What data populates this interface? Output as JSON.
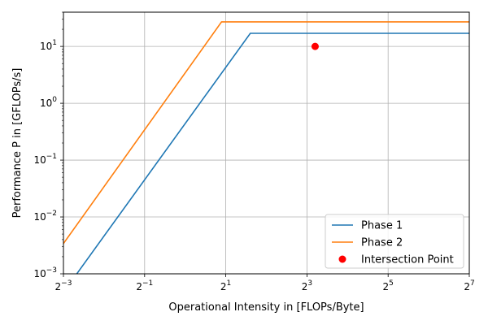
{
  "chart_data": {
    "type": "line",
    "xlabel": "Operational Intensity in [FLOPs/Byte]",
    "ylabel": "Performance P in [GFLOPs/s]",
    "x_scale": "log2",
    "y_scale": "log10",
    "xlim": [
      0.125,
      128
    ],
    "ylim": [
      0.001,
      40
    ],
    "x_ticks": [
      {
        "base": "2",
        "exp": "−3",
        "value": 0.125
      },
      {
        "base": "2",
        "exp": "−1",
        "value": 0.5
      },
      {
        "base": "2",
        "exp": "1",
        "value": 2
      },
      {
        "base": "2",
        "exp": "3",
        "value": 8
      },
      {
        "base": "2",
        "exp": "5",
        "value": 32
      },
      {
        "base": "2",
        "exp": "7",
        "value": 128
      }
    ],
    "y_ticks": [
      {
        "base": "10",
        "exp": "−3",
        "value": 0.001
      },
      {
        "base": "10",
        "exp": "−2",
        "value": 0.01
      },
      {
        "base": "10",
        "exp": "−1",
        "value": 0.1
      },
      {
        "base": "10",
        "exp": "0",
        "value": 1
      },
      {
        "base": "10",
        "exp": "1",
        "value": 10
      }
    ],
    "grid": true,
    "legend_position": "bottom-right",
    "series": [
      {
        "name": "Phase 1",
        "type": "line",
        "color": "#1f77b4",
        "x": [
          0.15,
          3.04,
          128
        ],
        "y": [
          0.00086,
          17,
          17
        ]
      },
      {
        "name": "Phase 2",
        "type": "line",
        "color": "#ff7f0e",
        "x": [
          0.125,
          1.86,
          128
        ],
        "y": [
          0.0034,
          27,
          27
        ]
      },
      {
        "name": "Intersection Point",
        "type": "scatter",
        "color": "#ff0000",
        "x": [
          9.2
        ],
        "y": [
          10
        ]
      }
    ]
  }
}
